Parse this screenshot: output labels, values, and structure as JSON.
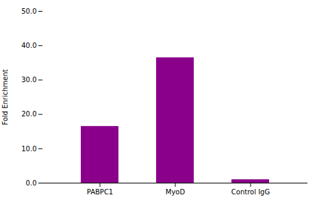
{
  "chart_data": {
    "type": "bar",
    "categories": [
      "PABPC1",
      "MyoD",
      "Control IgG"
    ],
    "values": [
      16.5,
      36.5,
      1.0
    ],
    "color": "#8B008B",
    "ylabel": "Fold Enrichment",
    "ylim": [
      0,
      50
    ],
    "yticks": [
      {
        "value": 0,
        "label": "0.0"
      },
      {
        "value": 10,
        "label": "10.0"
      },
      {
        "value": 20,
        "label": "20.0"
      },
      {
        "value": 30,
        "label": "30.0"
      },
      {
        "value": 40,
        "label": "40.0"
      },
      {
        "value": 50,
        "label": "50.0"
      }
    ],
    "grid": false
  }
}
